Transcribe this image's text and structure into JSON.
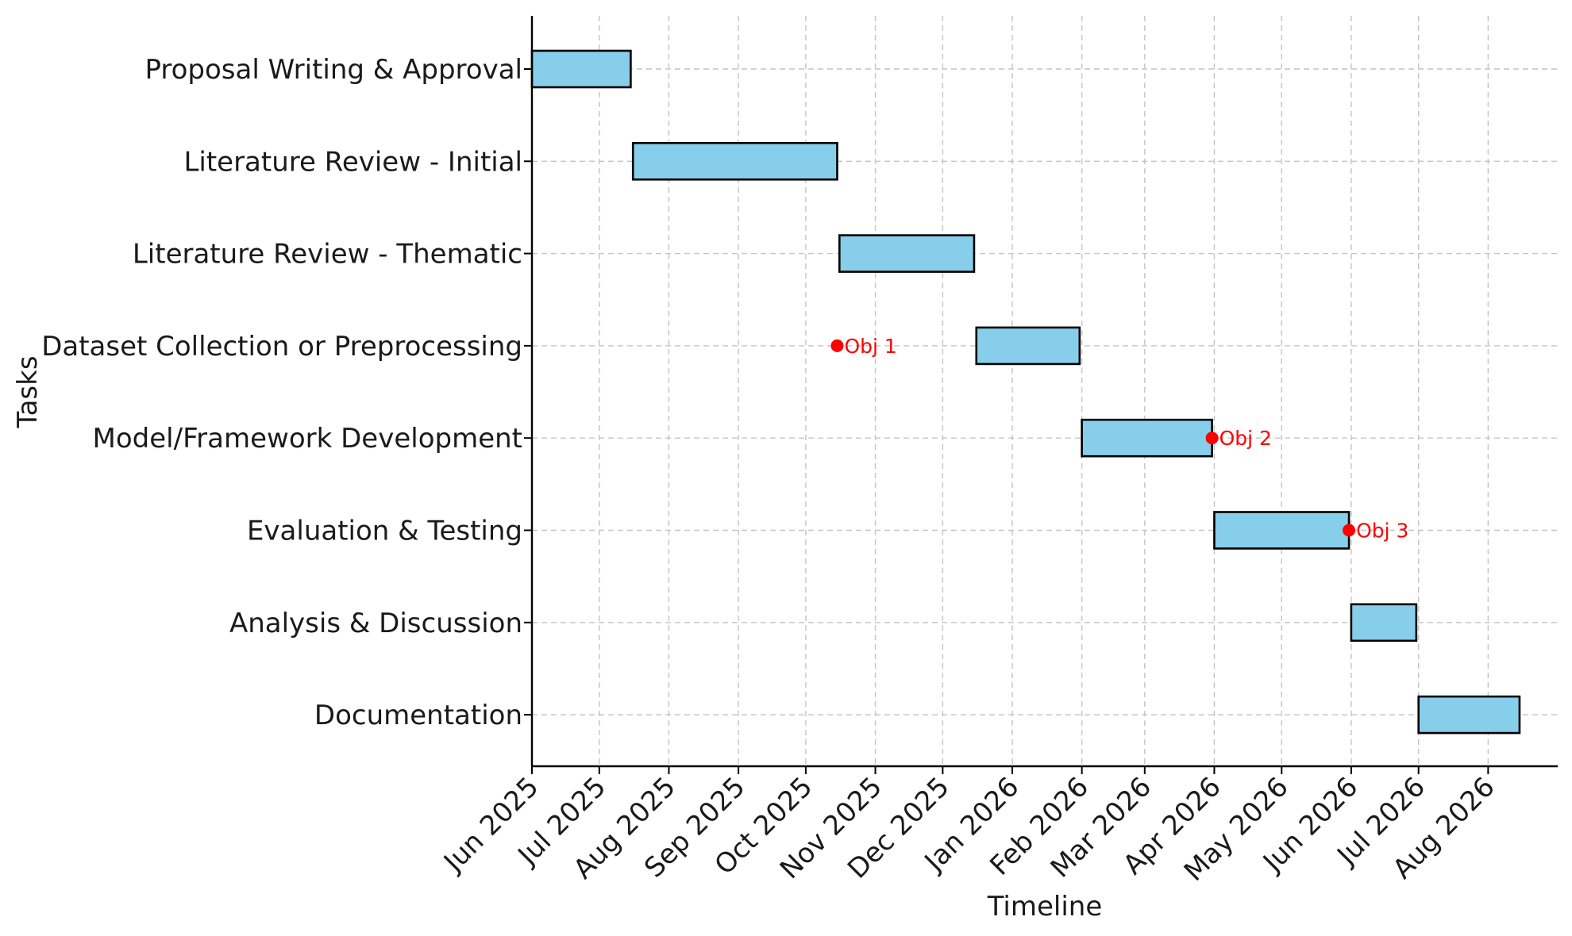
{
  "chart_data": {
    "type": "gantt",
    "title": "",
    "xlabel": "Timeline",
    "ylabel": "Tasks",
    "grid": true,
    "colors": {
      "bar": "#87ceeb",
      "bar_edge": "#000000",
      "milestone": "#ff0000"
    },
    "xlim": [
      "2025-06-01",
      "2026-09-01"
    ],
    "x_ticks": [
      {
        "date": "2025-06-01",
        "label": "Jun 2025"
      },
      {
        "date": "2025-07-01",
        "label": "Jul 2025"
      },
      {
        "date": "2025-08-01",
        "label": "Aug 2025"
      },
      {
        "date": "2025-09-01",
        "label": "Sep 2025"
      },
      {
        "date": "2025-10-01",
        "label": "Oct 2025"
      },
      {
        "date": "2025-11-01",
        "label": "Nov 2025"
      },
      {
        "date": "2025-12-01",
        "label": "Dec 2025"
      },
      {
        "date": "2026-01-01",
        "label": "Jan 2026"
      },
      {
        "date": "2026-02-01",
        "label": "Feb 2026"
      },
      {
        "date": "2026-03-01",
        "label": "Mar 2026"
      },
      {
        "date": "2026-04-01",
        "label": "Apr 2026"
      },
      {
        "date": "2026-05-01",
        "label": "May 2026"
      },
      {
        "date": "2026-06-01",
        "label": "Jun 2026"
      },
      {
        "date": "2026-07-01",
        "label": "Jul 2026"
      },
      {
        "date": "2026-08-01",
        "label": "Aug 2026"
      }
    ],
    "tasks": [
      {
        "name": "Proposal Writing & Approval",
        "start": "2025-06-01",
        "end": "2025-07-15"
      },
      {
        "name": "Literature Review - Initial",
        "start": "2025-07-16",
        "end": "2025-10-15"
      },
      {
        "name": "Literature Review - Thematic",
        "start": "2025-10-16",
        "end": "2025-12-15"
      },
      {
        "name": "Dataset Collection or Preprocessing",
        "start": "2025-12-16",
        "end": "2026-01-31"
      },
      {
        "name": "Model/Framework Development",
        "start": "2026-02-01",
        "end": "2026-03-31"
      },
      {
        "name": "Evaluation & Testing",
        "start": "2026-04-01",
        "end": "2026-05-31"
      },
      {
        "name": "Analysis & Discussion",
        "start": "2026-06-01",
        "end": "2026-06-30"
      },
      {
        "name": "Documentation",
        "start": "2026-07-01",
        "end": "2026-08-15"
      }
    ],
    "milestones": [
      {
        "label": "Obj 1",
        "date": "2025-10-15",
        "task": "Dataset Collection or Preprocessing"
      },
      {
        "label": "Obj 2",
        "date": "2026-03-31",
        "task": "Model/Framework Development"
      },
      {
        "label": "Obj 3",
        "date": "2026-05-31",
        "task": "Evaluation & Testing"
      }
    ]
  }
}
